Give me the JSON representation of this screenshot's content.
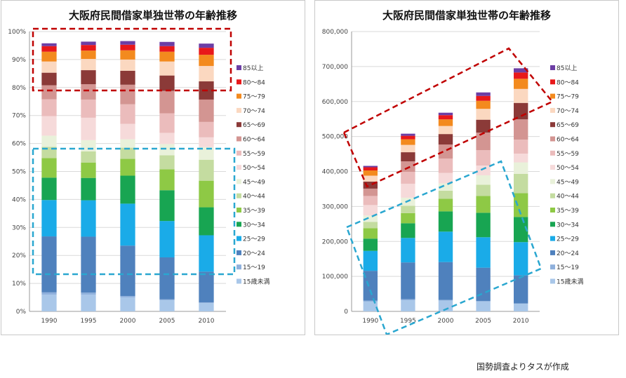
{
  "age_groups": [
    "15歳未満",
    "15～19",
    "20～24",
    "25～29",
    "30～34",
    "35～39",
    "40～44",
    "45～49",
    "50～54",
    "55～59",
    "60～64",
    "65～69",
    "70～74",
    "75～79",
    "80～84",
    "85以上"
  ],
  "colors": [
    "#a9c7e9",
    "#8fb0dc",
    "#4f81bd",
    "#1aabe8",
    "#18a552",
    "#8ec945",
    "#c4dca0",
    "#e9f1da",
    "#f6dada",
    "#ebbcbc",
    "#d39592",
    "#8b3a38",
    "#fbd8c0",
    "#f38a1e",
    "#e8181a",
    "#6c3ea5"
  ],
  "source_note": "国勢調査よりタスが作成",
  "chart_data": [
    {
      "type": "bar",
      "title": "大阪府民間借家単独世帯の年齢推移",
      "categories": [
        "1990",
        "1995",
        "2000",
        "2005",
        "2010"
      ],
      "ylim": [
        0,
        100
      ],
      "y_ticks": [
        "0%",
        "10%",
        "20%",
        "30%",
        "40%",
        "50%",
        "60%",
        "70%",
        "80%",
        "90%",
        "100%"
      ],
      "stacked": true,
      "legend_position": "right",
      "series": [
        {
          "name": "15歳未満",
          "values": [
            6,
            6,
            5,
            4,
            3
          ]
        },
        {
          "name": "15～19",
          "values": [
            0.8,
            0.7,
            0.5,
            0.3,
            0.2
          ]
        },
        {
          "name": "20～24",
          "values": [
            20,
            20,
            18,
            15,
            11
          ]
        },
        {
          "name": "25～29",
          "values": [
            13,
            13,
            15,
            13,
            13
          ]
        },
        {
          "name": "30～34",
          "values": [
            8,
            8,
            10,
            11,
            10
          ]
        },
        {
          "name": "35～39",
          "values": [
            7,
            5.5,
            6,
            7.5,
            9.5
          ]
        },
        {
          "name": "40～44",
          "values": [
            4,
            4,
            4,
            5,
            7.5
          ]
        },
        {
          "name": "45～49",
          "values": [
            4,
            4,
            3,
            4,
            4.5
          ]
        },
        {
          "name": "50～54",
          "values": [
            7,
            8,
            5.5,
            4,
            3.5
          ]
        },
        {
          "name": "55～59",
          "values": [
            6,
            6.5,
            7,
            7,
            5.5
          ]
        },
        {
          "name": "60～64",
          "values": [
            5,
            5.5,
            7,
            8,
            8
          ]
        },
        {
          "name": "65～69",
          "values": [
            4.5,
            5,
            5,
            5.5,
            6.5
          ]
        },
        {
          "name": "70～74",
          "values": [
            4,
            4,
            4,
            5,
            5.5
          ]
        },
        {
          "name": "75～79",
          "values": [
            3.5,
            3,
            3.3,
            3.5,
            4
          ]
        },
        {
          "name": "80～84",
          "values": [
            2,
            2,
            2,
            2,
            2.5
          ]
        },
        {
          "name": "85以上",
          "values": [
            1,
            1.2,
            1.3,
            1.5,
            1.5
          ]
        }
      ],
      "annotations": [
        {
          "type": "dashed-rect",
          "color": "#c00000"
        },
        {
          "type": "dashed-rect",
          "color": "#2aa7d0"
        }
      ]
    },
    {
      "type": "bar",
      "title": "大阪府民間借家単独世帯の年齢推移",
      "categories": [
        "1990",
        "1995",
        "2000",
        "2005",
        "2010"
      ],
      "ylim": [
        0,
        800000
      ],
      "y_ticks": [
        "0",
        "100,000",
        "200,000",
        "300,000",
        "400,000",
        "500,000",
        "600,000",
        "700,000",
        "800,000"
      ],
      "stacked": true,
      "legend_position": "right",
      "series": [
        {
          "name": "15歳未満",
          "values": [
            28000,
            32000,
            31000,
            28000,
            22000
          ]
        },
        {
          "name": "15～19",
          "values": [
            3000,
            3000,
            2000,
            2000,
            1000
          ]
        },
        {
          "name": "20～24",
          "values": [
            85000,
            105000,
            108000,
            95000,
            80000
          ]
        },
        {
          "name": "25～29",
          "values": [
            57000,
            70000,
            87000,
            87000,
            95000
          ]
        },
        {
          "name": "30～34",
          "values": [
            35000,
            42000,
            58000,
            70000,
            72000
          ]
        },
        {
          "name": "35～39",
          "values": [
            30000,
            29000,
            36000,
            48000,
            68000
          ]
        },
        {
          "name": "40～44",
          "values": [
            18000,
            21000,
            23000,
            32000,
            55000
          ]
        },
        {
          "name": "45～49",
          "values": [
            18000,
            23000,
            21000,
            27000,
            33000
          ]
        },
        {
          "name": "50～54",
          "values": [
            30000,
            40000,
            30000,
            28000,
            25000
          ]
        },
        {
          "name": "55～59",
          "values": [
            26000,
            34000,
            41000,
            44000,
            40000
          ]
        },
        {
          "name": "60～64",
          "values": [
            21000,
            30000,
            40000,
            50000,
            58000
          ]
        },
        {
          "name": "65～69",
          "values": [
            20000,
            26000,
            30000,
            37000,
            47000
          ]
        },
        {
          "name": "70～74",
          "values": [
            17000,
            21000,
            23000,
            31000,
            40000
          ]
        },
        {
          "name": "75～79",
          "values": [
            15000,
            16000,
            19000,
            23000,
            29000
          ]
        },
        {
          "name": "80～84",
          "values": [
            9000,
            10000,
            12000,
            14000,
            18000
          ]
        },
        {
          "name": "85以上",
          "values": [
            4000,
            6000,
            7000,
            10000,
            12000
          ]
        }
      ],
      "annotations": [
        {
          "type": "dashed-rect",
          "color": "#c00000"
        },
        {
          "type": "dashed-rect",
          "color": "#2aa7d0"
        }
      ]
    }
  ]
}
